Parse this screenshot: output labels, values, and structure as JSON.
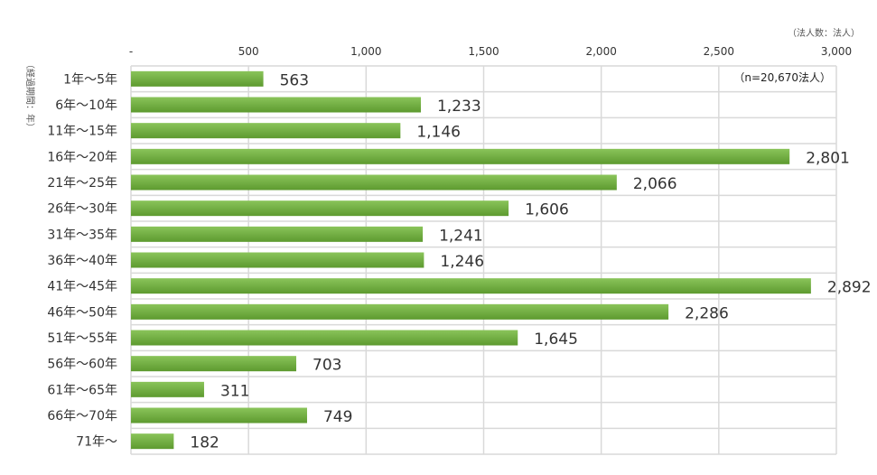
{
  "chart_data": {
    "type": "bar",
    "orientation": "horizontal",
    "unit_note": "（法人数：法人）",
    "ylabel": "（経過期間：年）",
    "sample_note": "（n=20,670法人）",
    "xlim": [
      0,
      3000
    ],
    "x_ticks": [
      0,
      500,
      1000,
      1500,
      2000,
      2500,
      3000
    ],
    "x_tick_labels": [
      "-",
      "500",
      "1,000",
      "1,500",
      "2,000",
      "2,500",
      "3,000"
    ],
    "grid": true,
    "categories": [
      "1年～5年",
      "6年～10年",
      "11年～15年",
      "16年～20年",
      "21年～25年",
      "26年～30年",
      "31年～35年",
      "36年～40年",
      "41年～45年",
      "46年～50年",
      "51年～55年",
      "56年～60年",
      "61年～65年",
      "66年～70年",
      "71年～"
    ],
    "values": [
      563,
      1233,
      1146,
      2801,
      2066,
      1606,
      1241,
      1246,
      2892,
      2286,
      1645,
      703,
      311,
      749,
      182
    ],
    "value_labels": [
      "563",
      "1,233",
      "1,146",
      "2,801",
      "2,066",
      "1,606",
      "1,241",
      "1,246",
      "2,892",
      "2,286",
      "1,645",
      "703",
      "311",
      "749",
      "182"
    ],
    "colors": {
      "bar_top": "#8ac45a",
      "bar_bottom": "#5d9a2f",
      "grid": "#d9d9d9"
    }
  }
}
